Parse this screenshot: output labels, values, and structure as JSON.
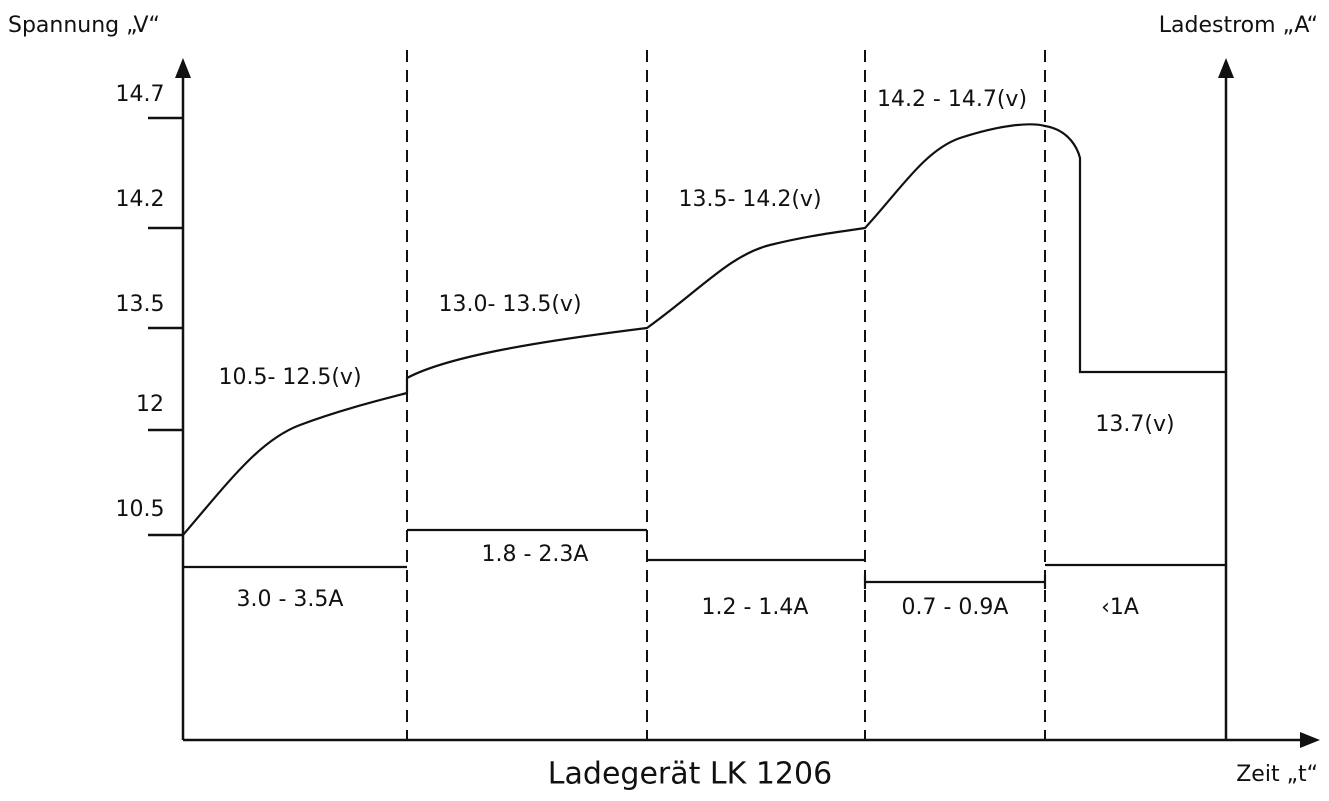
{
  "axes": {
    "left": "Spannung „V“",
    "right": "Ladestrom „A“",
    "bottom": "Zeit „t“"
  },
  "title": "Ladegerät LK 1206",
  "voltage_ticks": [
    "14.7",
    "14.2",
    "13.5",
    "12",
    "10.5"
  ],
  "stages": [
    {
      "voltage": "10.5- 12.5(v)",
      "current": "3.0 - 3.5A"
    },
    {
      "voltage": "13.0- 13.5(v)",
      "current": "1.8 - 2.3A"
    },
    {
      "voltage": "13.5- 14.2(v)",
      "current": "1.2 - 1.4A"
    },
    {
      "voltage": "14.2 - 14.7(v)",
      "current": "0.7 - 0.9A"
    },
    {
      "voltage": "13.7(v)",
      "current": "‹1A"
    }
  ]
}
